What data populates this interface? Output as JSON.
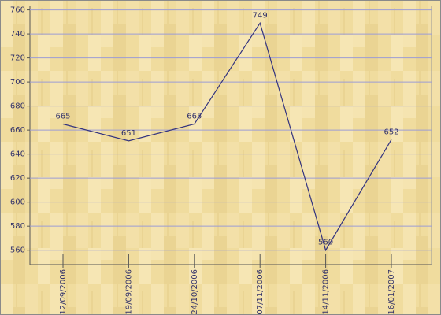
{
  "chart_data": {
    "type": "line",
    "categories": [
      "12/09/2006",
      "19/09/2006",
      "24/10/2006",
      "07/11/2006",
      "14/11/2006",
      "16/01/2007"
    ],
    "values": [
      665,
      651,
      665,
      749,
      560,
      652
    ],
    "color": "#33337f",
    "ylim": [
      548,
      763
    ],
    "yticks": [
      560,
      580,
      600,
      620,
      640,
      660,
      680,
      700,
      720,
      740,
      760
    ],
    "grid": true
  }
}
